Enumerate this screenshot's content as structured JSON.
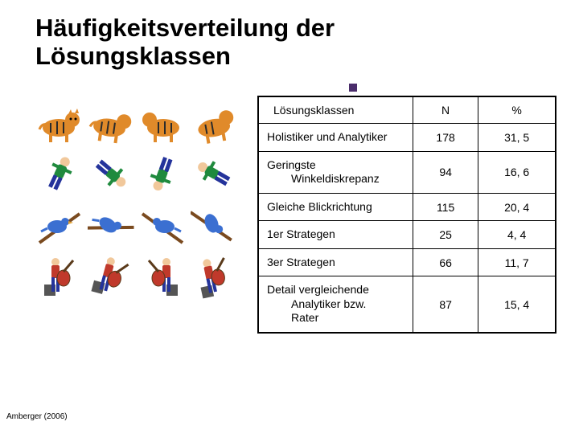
{
  "title_line1": "Häufigkeitsverteilung der",
  "title_line2": "Lösungsklassen",
  "citation": "Amberger (2006)",
  "table": {
    "headers": [
      "Lösungsklassen",
      "N",
      "%"
    ],
    "rows": [
      {
        "label": "Holistiker und Analytiker",
        "n": "178",
        "pct": "31, 5"
      },
      {
        "label": "Geringste\nWinkeldiskrepanz",
        "n": "94",
        "pct": "16, 6"
      },
      {
        "label": "Gleiche Blickrichtung",
        "n": "115",
        "pct": "20, 4"
      },
      {
        "label": "1er Strategen",
        "n": "25",
        "pct": "4, 4"
      },
      {
        "label": "3er Strategen",
        "n": "66",
        "pct": "11, 7"
      },
      {
        "label": "Detail vergleichende\nAnalytiker bzw.\nRater",
        "n": "87",
        "pct": "15, 4"
      }
    ]
  },
  "stimuli": {
    "rows": [
      {
        "type": "tiger",
        "count": 4
      },
      {
        "type": "person-tumble",
        "count": 4
      },
      {
        "type": "bird-branch",
        "count": 4
      },
      {
        "type": "guitar-player",
        "count": 4
      }
    ]
  },
  "colors": {
    "tiger_body": "#e08a2a",
    "tiger_stripe": "#2b2b2b",
    "person_shirt": "#1f8a3d",
    "person_pants": "#24339b",
    "person_skin": "#f1c89b",
    "bird_body": "#3b6fd1",
    "branch": "#7a4a1f",
    "guitar_body": "#c0392b",
    "guitar_neck": "#5a3a1a",
    "accent": "#4a2d6b",
    "border": "#000000",
    "text": "#000000",
    "bg": "#ffffff"
  },
  "layout": {
    "slide_w": 720,
    "slide_h": 540,
    "title_fontsize": 31,
    "table_fontsize": 14,
    "citation_fontsize": 10,
    "col_widths_pct": [
      52,
      22,
      26
    ]
  }
}
